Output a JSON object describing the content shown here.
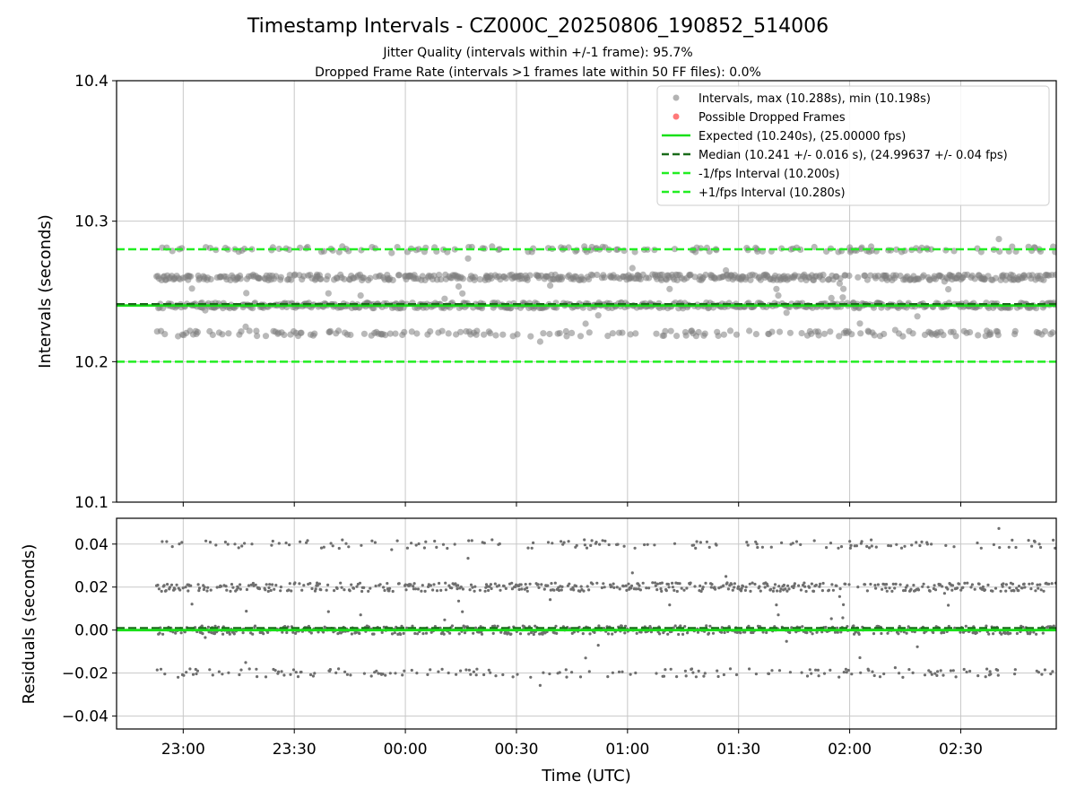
{
  "title": "Timestamp Intervals - CZ000C_20250806_190852_514006",
  "subtitle_1": "Jitter Quality (intervals within +/-1 frame): 95.7%",
  "subtitle_2": "Dropped Frame Rate (intervals >1 frames late within 50 FF files): 0.0%",
  "colors": {
    "points": "#808080",
    "dropped": "#ff4040",
    "expected": "#18e018",
    "median": "#1a6b1a",
    "bounds": "#22ee22",
    "grid": "#c8c8c8"
  },
  "chart_data": [
    {
      "type": "scatter",
      "panel": "intervals",
      "ylabel": "Intervals (seconds)",
      "ylim": [
        10.1,
        10.4
      ],
      "yticks": [
        "10.1",
        "10.2",
        "10.3",
        "10.4"
      ],
      "ytick_values": [
        10.1,
        10.2,
        10.3,
        10.4
      ],
      "x_range_hours": [
        22.7,
        26.93
      ],
      "grid": true,
      "legend_position": "top-right",
      "legend": [
        "Intervals, max (10.288s), min (10.198s)",
        "Possible Dropped Frames",
        "Expected (10.240s), (25.00000 fps)",
        "Median (10.241 +/- 0.016 s), (24.99637 +/- 0.04 fps)",
        "-1/fps Interval (10.200s)",
        "+1/fps Interval (10.280s)"
      ],
      "expected": 10.24,
      "median": 10.241,
      "lower_bound": 10.2,
      "upper_bound": 10.28,
      "levels": [
        10.22,
        10.24,
        10.26,
        10.28
      ],
      "level_shares": [
        0.13,
        0.4,
        0.37,
        0.1
      ],
      "max": 10.288,
      "min": 10.198,
      "dropped_frames": []
    },
    {
      "type": "scatter",
      "panel": "residuals",
      "ylabel": "Residuals (seconds)",
      "xlabel": "Time (UTC)",
      "ylim": [
        -0.046,
        0.052
      ],
      "yticks": [
        "0.04",
        "0.02",
        "0.00",
        "−0.02",
        "−0.04"
      ],
      "ytick_values": [
        0.04,
        0.02,
        0.0,
        -0.02,
        -0.04
      ],
      "xticks": [
        "23:00",
        "23:30",
        "00:00",
        "00:30",
        "01:00",
        "01:30",
        "02:00",
        "02:30"
      ],
      "xtick_hours": [
        23.0,
        23.5,
        24.0,
        24.5,
        25.0,
        25.5,
        26.0,
        26.5
      ],
      "x_range_hours": [
        22.7,
        26.93
      ],
      "grid": true,
      "expected": 0.0,
      "median_offset": 0.001,
      "levels": [
        -0.02,
        0.0,
        0.02,
        0.04
      ]
    }
  ]
}
